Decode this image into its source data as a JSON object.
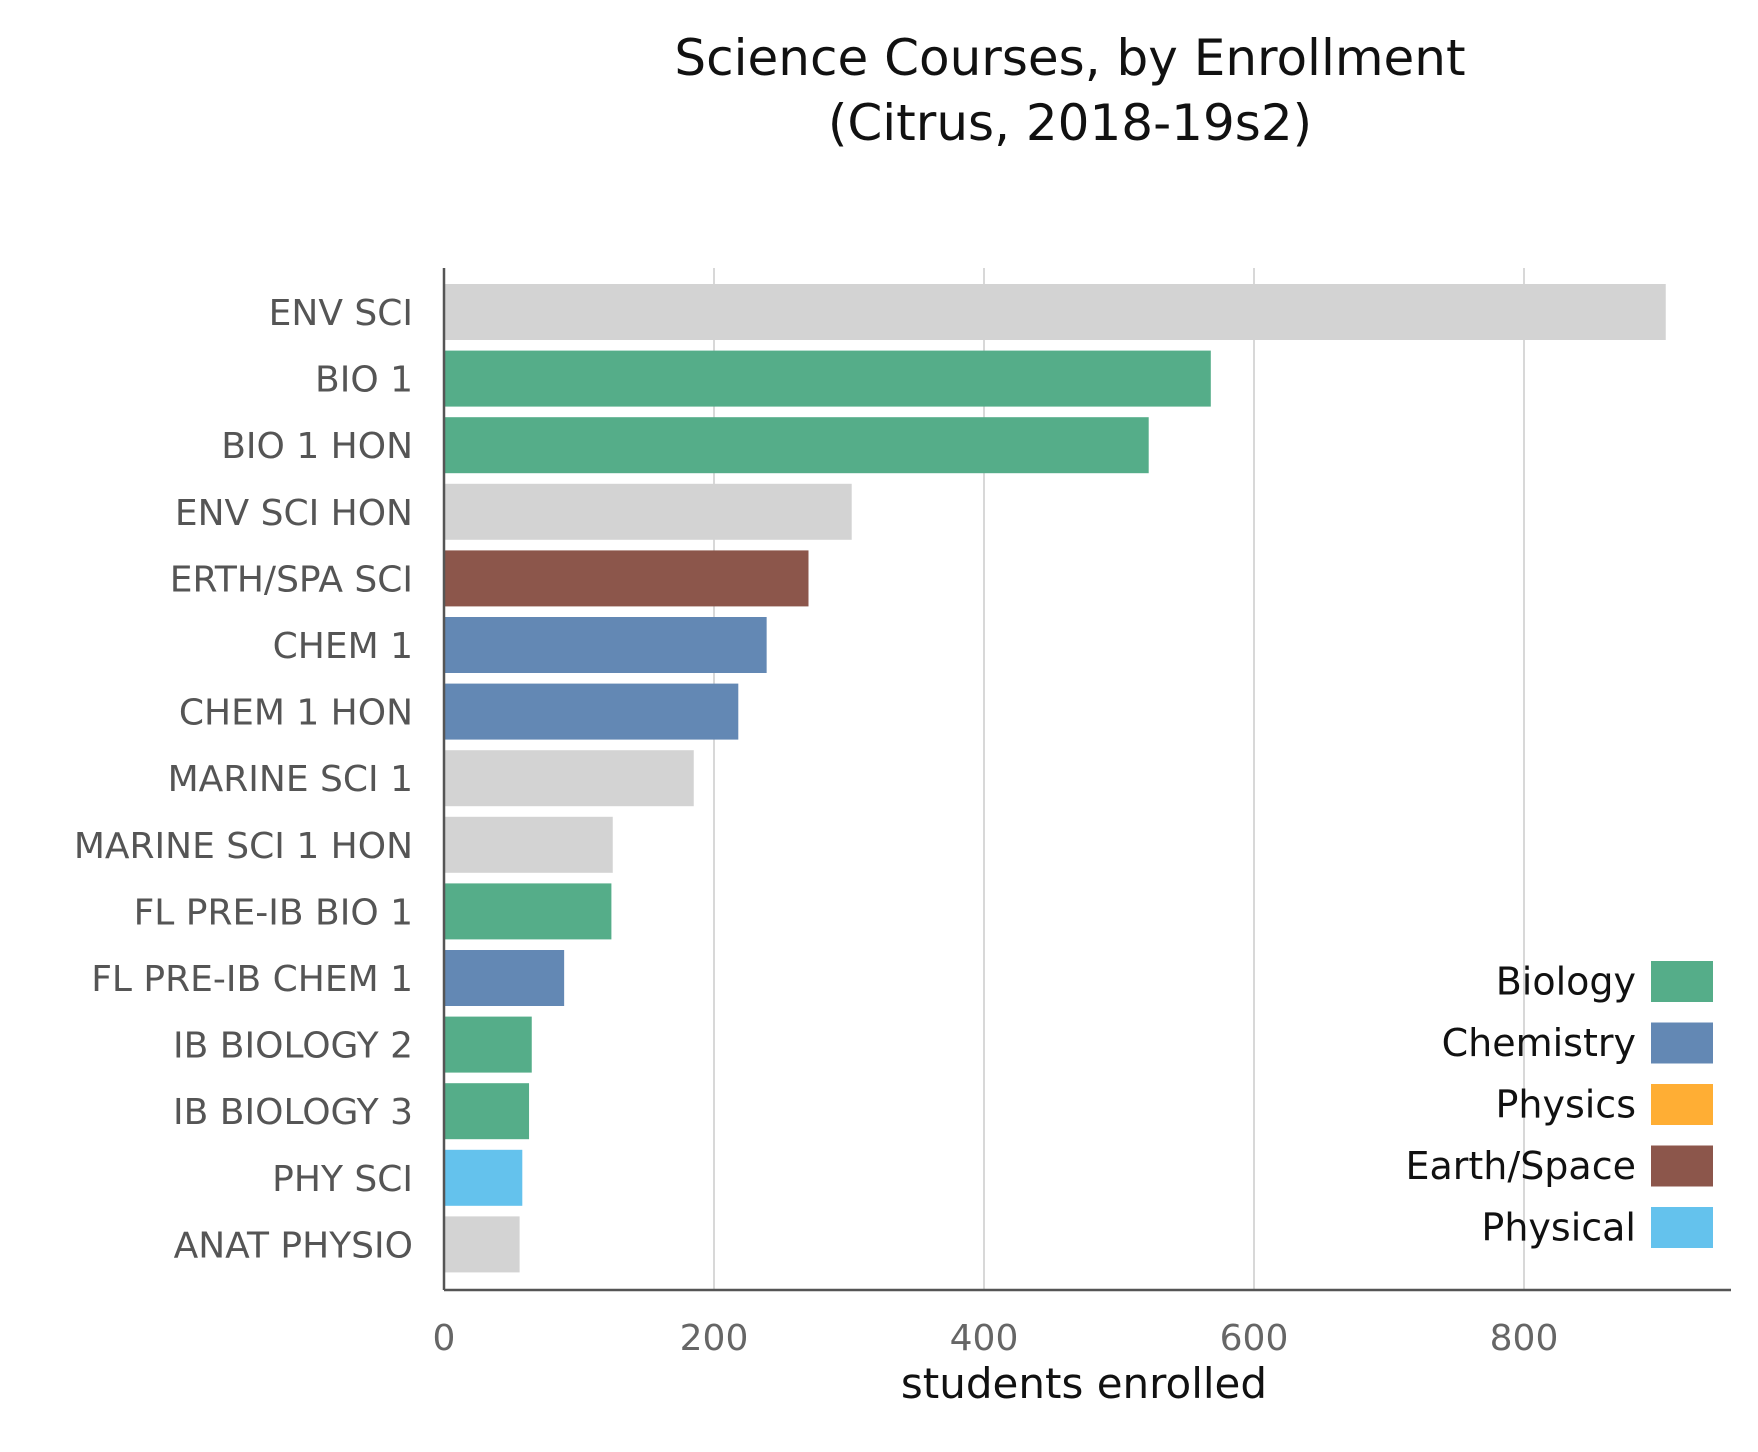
{
  "chart_data": {
    "type": "bar",
    "orientation": "horizontal",
    "title": "Science Courses, by Enrollment",
    "subtitle": "(Citrus, 2018-19s2)",
    "xlabel": "students enrolled",
    "ylabel": "",
    "xlim": [
      0,
      950
    ],
    "xticks": [
      0,
      200,
      400,
      600,
      800
    ],
    "grid": "vertical",
    "categories": [
      "ENV SCI",
      "BIO 1",
      "BIO 1 HON",
      "ENV SCI HON",
      "ERTH/SPA SCI",
      "CHEM 1",
      "CHEM 1 HON",
      "MARINE SCI 1",
      "MARINE SCI 1 HON",
      "FL PRE-IB BIO 1",
      "FL PRE-IB CHEM 1",
      "IB BIOLOGY 2",
      "IB BIOLOGY 3",
      "PHY SCI",
      "ANAT PHYSIO"
    ],
    "values": [
      905,
      568,
      522,
      302,
      270,
      239,
      218,
      185,
      125,
      124,
      89,
      65,
      63,
      58,
      56
    ],
    "bar_groups": [
      "Other",
      "Biology",
      "Biology",
      "Other",
      "Earth/Space",
      "Chemistry",
      "Chemistry",
      "Other",
      "Other",
      "Biology",
      "Chemistry",
      "Biology",
      "Biology",
      "Physical",
      "Other"
    ],
    "legend_position": "bottom-right",
    "legend": [
      {
        "name": "Biology",
        "color": "#55ad89"
      },
      {
        "name": "Chemistry",
        "color": "#6388b4"
      },
      {
        "name": "Physics",
        "color": "#ffae34"
      },
      {
        "name": "Earth/Space",
        "color": "#8c564b"
      },
      {
        "name": "Physical",
        "color": "#64c2ed"
      }
    ],
    "group_colors": {
      "Biology": "#55ad89",
      "Chemistry": "#6388b4",
      "Physics": "#ffae34",
      "Earth/Space": "#8c564b",
      "Physical": "#64c2ed",
      "Other": "#d3d3d3"
    }
  }
}
